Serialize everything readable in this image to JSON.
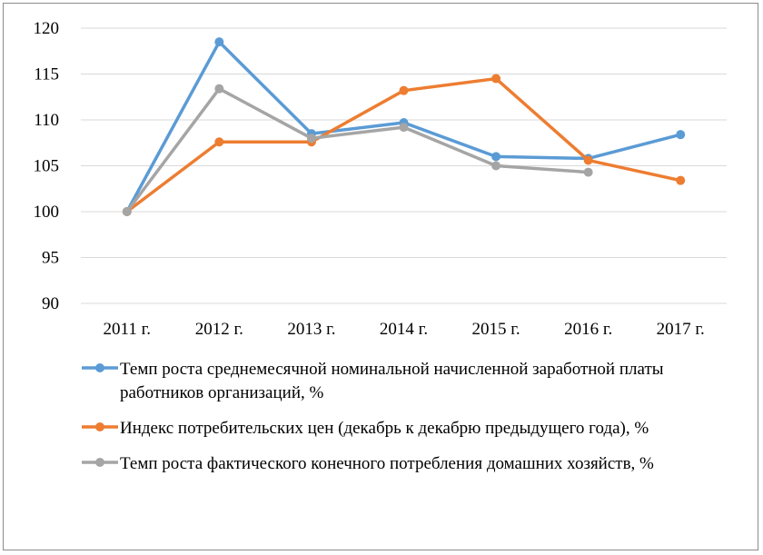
{
  "chart_data": {
    "type": "line",
    "title": "",
    "xlabel": "",
    "ylabel": "",
    "categories": [
      "2011 г.",
      "2012 г.",
      "2013 г.",
      "2014 г.",
      "2015 г.",
      "2016 г.",
      "2017 г."
    ],
    "ylim": [
      90,
      120
    ],
    "yticks": [
      90,
      95,
      100,
      105,
      110,
      115,
      120
    ],
    "grid": true,
    "legend_position": "bottom",
    "series": [
      {
        "name": "Темп роста среднемесячной номинальной начисленной заработной платы работников организаций, %",
        "color": "#5b9bd5",
        "values": [
          100,
          118.5,
          108.5,
          109.7,
          106.0,
          105.8,
          108.4
        ]
      },
      {
        "name": "Индекс потребительских цен (декабрь к декабрю предыдущего года), %",
        "color": "#ed7d31",
        "values": [
          100,
          107.6,
          107.6,
          113.2,
          114.5,
          105.6,
          103.4
        ]
      },
      {
        "name": "Темп роста фактического конечного потребления домашних хозяйств, %",
        "color": "#a5a5a5",
        "values": [
          100,
          113.4,
          108.0,
          109.2,
          105.0,
          104.3,
          null
        ]
      }
    ]
  }
}
